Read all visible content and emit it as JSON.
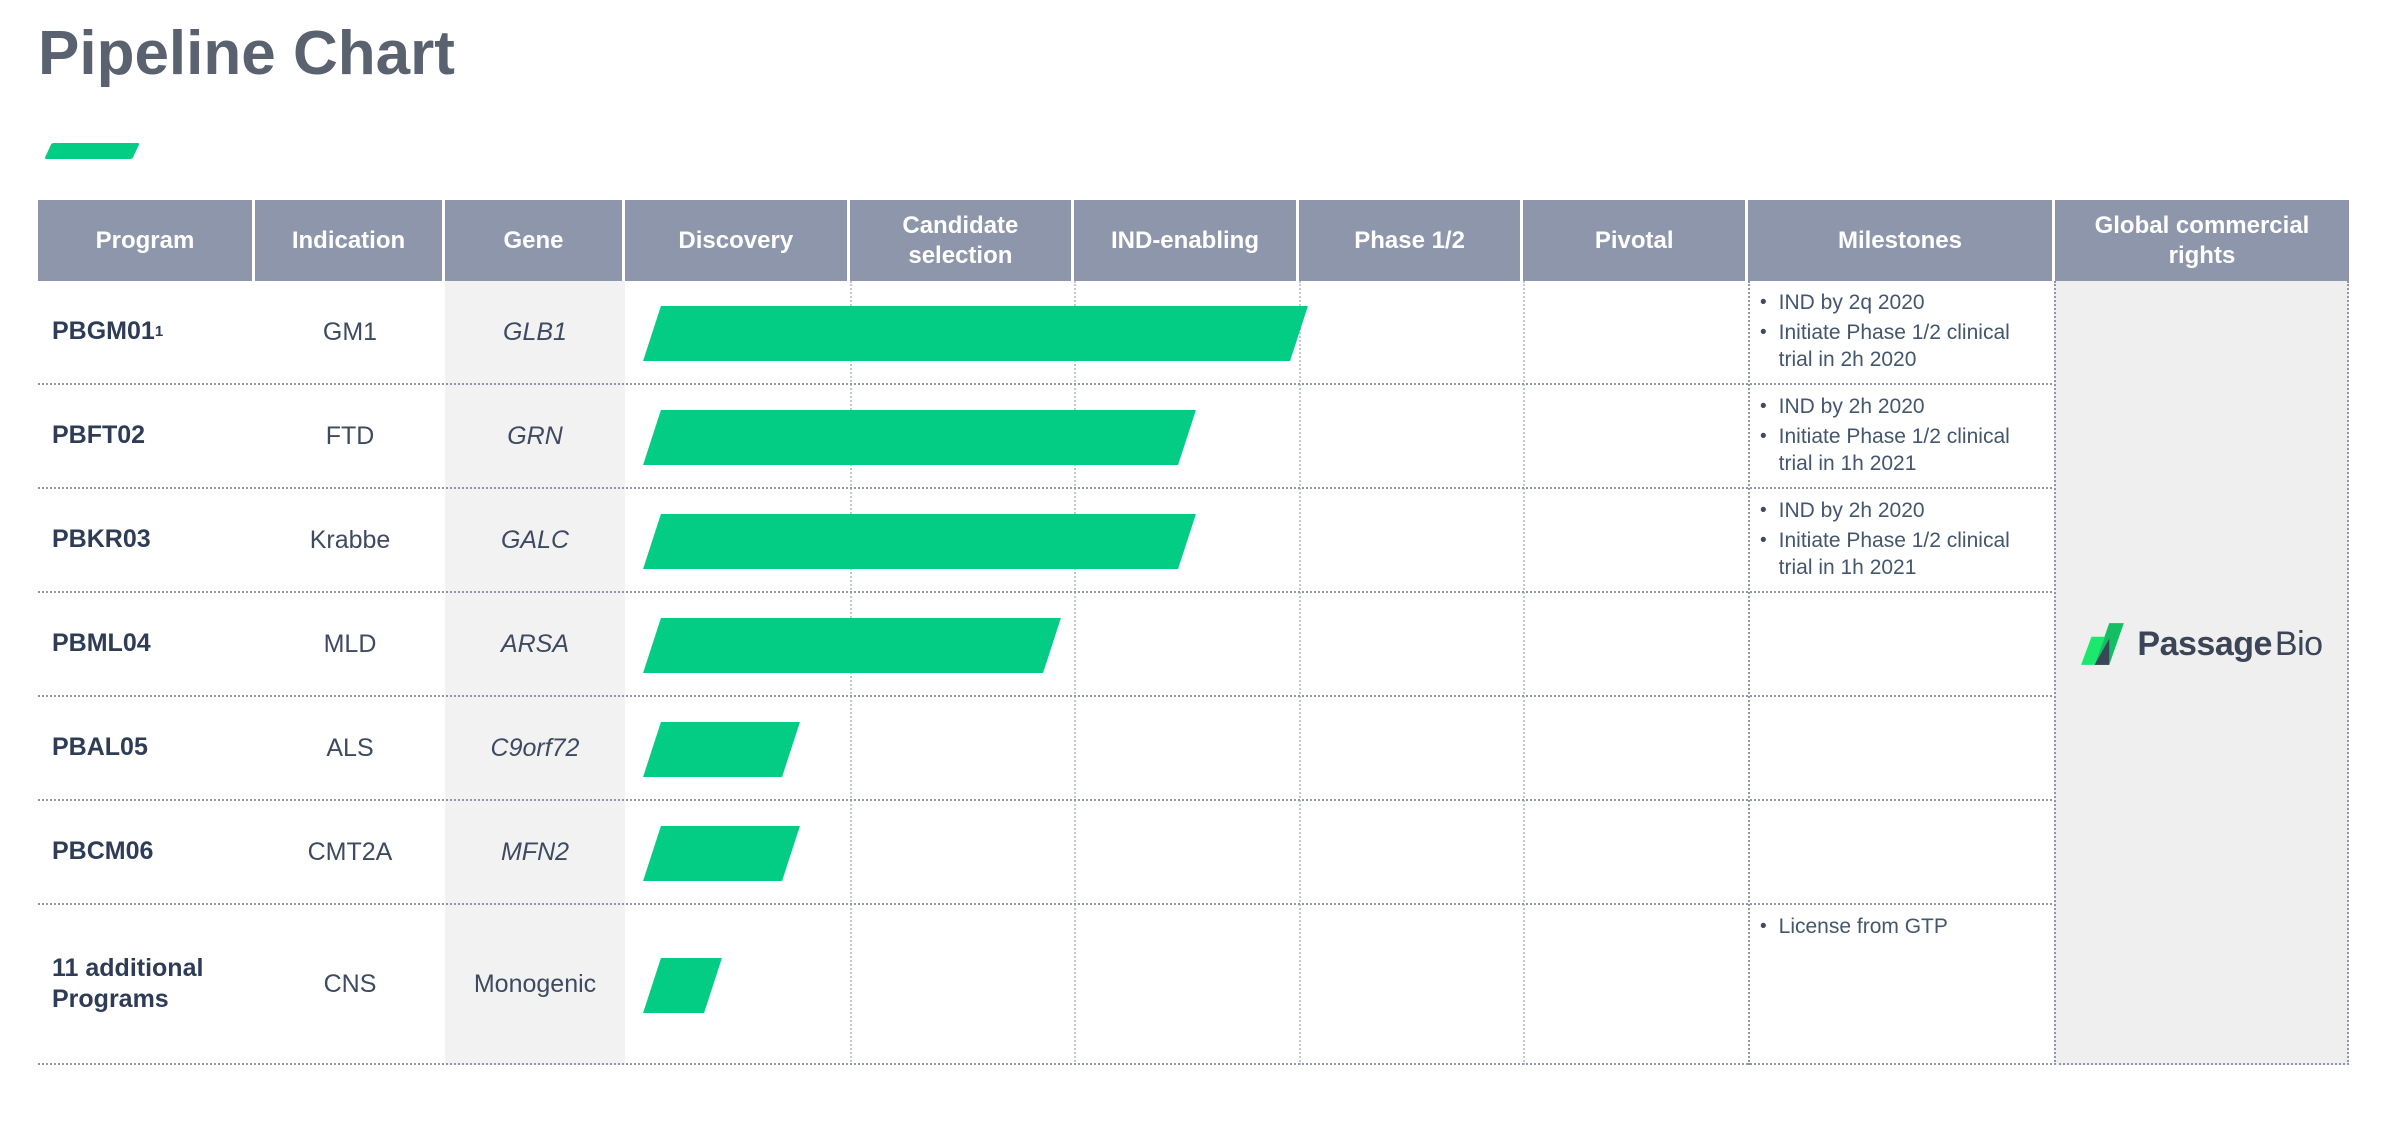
{
  "title": "Pipeline Chart",
  "table": {
    "columns": [
      "Program",
      "Indication",
      "Gene",
      "Discovery",
      "Candidate selection",
      "IND-enabling",
      "Phase 1/2",
      "Pivotal",
      "Milestones",
      "Global commercial rights"
    ]
  },
  "chart_data": {
    "type": "table",
    "title": "Pipeline Chart",
    "stages": [
      "Discovery",
      "Candidate selection",
      "IND-enabling",
      "Phase 1/2",
      "Pivotal"
    ],
    "progress_scale": "stage units: 0 = start of Discovery, 1 = end of Discovery, 3 = end of IND-enabling, 5 = end of Pivotal",
    "rows": [
      {
        "program": "PBGM01",
        "program_sup": "1",
        "indication": "GM1",
        "gene": "GLB1",
        "gene_italic": true,
        "progress_start": 0.12,
        "progress_end": 3.0,
        "milestones": [
          "IND by 2q 2020",
          "Initiate Phase 1/2 clinical trial in 2h 2020"
        ]
      },
      {
        "program": "PBFT02",
        "program_sup": "",
        "indication": "FTD",
        "gene": "GRN",
        "gene_italic": true,
        "progress_start": 0.12,
        "progress_end": 2.5,
        "milestones": [
          "IND by 2h 2020",
          "Initiate Phase 1/2 clinical trial in 1h 2021"
        ]
      },
      {
        "program": "PBKR03",
        "program_sup": "",
        "indication": "Krabbe",
        "gene": "GALC",
        "gene_italic": true,
        "progress_start": 0.12,
        "progress_end": 2.5,
        "milestones": [
          "IND by 2h 2020",
          "Initiate Phase 1/2 clinical trial in 1h 2021"
        ]
      },
      {
        "program": "PBML04",
        "program_sup": "",
        "indication": "MLD",
        "gene": "ARSA",
        "gene_italic": true,
        "progress_start": 0.12,
        "progress_end": 1.9,
        "milestones": []
      },
      {
        "program": "PBAL05",
        "program_sup": "",
        "indication": "ALS",
        "gene": "C9orf72",
        "gene_italic": true,
        "progress_start": 0.12,
        "progress_end": 0.74,
        "milestones": []
      },
      {
        "program": "PBCM06",
        "program_sup": "",
        "indication": "CMT2A",
        "gene": "MFN2",
        "gene_italic": true,
        "progress_start": 0.12,
        "progress_end": 0.74,
        "milestones": []
      },
      {
        "program": "11 additional Programs",
        "program_sup": "",
        "indication": "CNS",
        "gene": "Monogenic",
        "gene_italic": false,
        "progress_start": 0.12,
        "progress_end": 0.39,
        "milestones": [
          "License from GTP"
        ]
      }
    ],
    "legend_position": "none",
    "grid": "dotted row and stage separators"
  },
  "logo": {
    "part1": "Passage",
    "part2": "Bio"
  },
  "colors": {
    "accent_green": "#03cc85",
    "header_bg": "#8d96ab",
    "header_text": "#ffffff",
    "program_text": "#2f3c55",
    "body_text": "#3e4a61",
    "milestone_text": "#44566e",
    "title_text": "#5a6270",
    "gene_band_bg": "#f2f2f2",
    "global_band_bg": "#efefef",
    "logo_green_light": "#1de86e",
    "logo_green_dark": "#12bf63",
    "logo_navy": "#3a4759"
  }
}
